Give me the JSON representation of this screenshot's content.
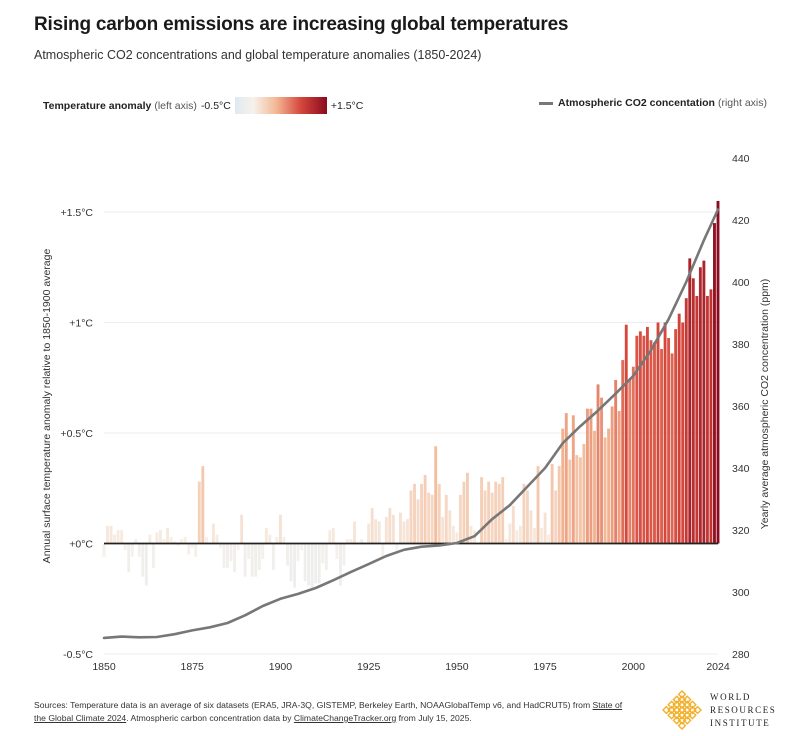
{
  "header": {
    "title": "Rising carbon emissions are increasing global temperatures",
    "subtitle": "Atmospheric CO2 concentrations and global temperature anomalies (1850-2024)"
  },
  "legend": {
    "temp_label": "Temperature anomaly",
    "temp_axis_note": "(left axis)",
    "temp_min": "-0.5°C",
    "temp_max": "+1.5°C",
    "co2_label": "Atmospheric CO2 concentation",
    "co2_axis_note": "(right axis)",
    "co2_color": "#777777"
  },
  "footer": {
    "sources_pre": "Sources: Temperature data is an average of six datasets (ERA5, JRA-3Q, GISTEMP, Berkeley Earth, NOAAGlobalTemp v6, and HadCRUT5) from ",
    "sources_link1": "State of the Global Climate 2024",
    "sources_mid": ". Atmospheric carbon concentration data by ",
    "sources_link2": "ClimateChangeTracker.org",
    "sources_post": " from July 15, 2025.",
    "org_line1": "WORLD",
    "org_line2": "RESOURCES",
    "org_line3": "INSTITUTE",
    "logo_color": "#f2b02c"
  },
  "chart_data": {
    "type": "bar",
    "ylabel": "Annual surface temperature anomaly relative to 1850-1900 average",
    "y2label": "Yearly average atmospheric CO2 concentration (ppm)",
    "ylim": [
      -0.5,
      1.5
    ],
    "y2lim": [
      280,
      440
    ],
    "xlim": [
      1850,
      2024
    ],
    "x_ticks": [
      "1850",
      "1875",
      "1900",
      "1925",
      "1950",
      "1975",
      "2000",
      "2024"
    ],
    "y_ticks": [
      "-0.5°C",
      "+0°C",
      "+0.5°C",
      "+1°C",
      "+1.5°C"
    ],
    "y2_ticks": [
      "280",
      "300",
      "320",
      "340",
      "360",
      "380",
      "400",
      "420",
      "440"
    ],
    "grid": true,
    "color_scale": [
      "#dfe9f2",
      "#f7f1ea",
      "#f3b794",
      "#d5463b",
      "#8a0a1f"
    ],
    "series": [
      {
        "name": "Temperature anomaly",
        "type": "bar",
        "years": [
          1850,
          1851,
          1852,
          1853,
          1854,
          1855,
          1856,
          1857,
          1858,
          1859,
          1860,
          1861,
          1862,
          1863,
          1864,
          1865,
          1866,
          1867,
          1868,
          1869,
          1870,
          1871,
          1872,
          1873,
          1874,
          1875,
          1876,
          1877,
          1878,
          1879,
          1880,
          1881,
          1882,
          1883,
          1884,
          1885,
          1886,
          1887,
          1888,
          1889,
          1890,
          1891,
          1892,
          1893,
          1894,
          1895,
          1896,
          1897,
          1898,
          1899,
          1900,
          1901,
          1902,
          1903,
          1904,
          1905,
          1906,
          1907,
          1908,
          1909,
          1910,
          1911,
          1912,
          1913,
          1914,
          1915,
          1916,
          1917,
          1918,
          1919,
          1920,
          1921,
          1922,
          1923,
          1924,
          1925,
          1926,
          1927,
          1928,
          1929,
          1930,
          1931,
          1932,
          1933,
          1934,
          1935,
          1936,
          1937,
          1938,
          1939,
          1940,
          1941,
          1942,
          1943,
          1944,
          1945,
          1946,
          1947,
          1948,
          1949,
          1950,
          1951,
          1952,
          1953,
          1954,
          1955,
          1956,
          1957,
          1958,
          1959,
          1960,
          1961,
          1962,
          1963,
          1964,
          1965,
          1966,
          1967,
          1968,
          1969,
          1970,
          1971,
          1972,
          1973,
          1974,
          1975,
          1976,
          1977,
          1978,
          1979,
          1980,
          1981,
          1982,
          1983,
          1984,
          1985,
          1986,
          1987,
          1988,
          1989,
          1990,
          1991,
          1992,
          1993,
          1994,
          1995,
          1996,
          1997,
          1998,
          1999,
          2000,
          2001,
          2002,
          2003,
          2004,
          2005,
          2006,
          2007,
          2008,
          2009,
          2010,
          2011,
          2012,
          2013,
          2014,
          2015,
          2016,
          2017,
          2018,
          2019,
          2020,
          2021,
          2022,
          2023,
          2024
        ],
        "values": [
          -0.06,
          0.08,
          0.08,
          0.04,
          0.06,
          0.06,
          -0.03,
          -0.13,
          -0.06,
          0.02,
          -0.06,
          -0.15,
          -0.19,
          0.04,
          -0.11,
          0.05,
          0.06,
          0.02,
          0.07,
          0.03,
          0.01,
          -0.01,
          0.02,
          0.03,
          -0.05,
          -0.02,
          -0.06,
          0.28,
          0.35,
          0.03,
          0.0,
          0.09,
          0.04,
          -0.02,
          -0.11,
          -0.11,
          -0.08,
          -0.13,
          -0.03,
          0.13,
          -0.15,
          -0.07,
          -0.15,
          -0.15,
          -0.12,
          -0.07,
          0.07,
          0.04,
          -0.12,
          0.03,
          0.13,
          0.03,
          -0.1,
          -0.17,
          -0.2,
          -0.08,
          -0.03,
          -0.17,
          -0.19,
          -0.2,
          -0.18,
          -0.18,
          -0.09,
          -0.12,
          0.06,
          0.07,
          -0.07,
          -0.19,
          -0.1,
          0.02,
          0.02,
          0.1,
          0.0,
          0.02,
          0.0,
          0.09,
          0.16,
          0.11,
          0.1,
          -0.06,
          0.12,
          0.16,
          0.13,
          -0.03,
          0.14,
          0.1,
          0.11,
          0.24,
          0.27,
          0.2,
          0.27,
          0.31,
          0.23,
          0.22,
          0.44,
          0.27,
          0.12,
          0.22,
          0.15,
          0.08,
          0.05,
          0.22,
          0.28,
          0.32,
          0.08,
          0.06,
          0.0,
          0.3,
          0.24,
          0.28,
          0.23,
          0.28,
          0.27,
          0.3,
          0.02,
          0.09,
          0.17,
          0.06,
          0.08,
          0.27,
          0.24,
          0.15,
          0.07,
          0.35,
          0.07,
          0.14,
          0.04,
          0.36,
          0.24,
          0.35,
          0.52,
          0.59,
          0.38,
          0.58,
          0.4,
          0.39,
          0.45,
          0.61,
          0.61,
          0.51,
          0.72,
          0.66,
          0.48,
          0.52,
          0.62,
          0.74,
          0.6,
          0.83,
          0.99,
          0.74,
          0.8,
          0.94,
          0.96,
          0.94,
          0.98,
          0.92,
          0.91,
          1.0,
          0.88,
          1.0,
          0.93,
          0.86,
          0.97,
          1.04,
          1.0,
          1.11,
          1.29,
          1.2,
          1.12,
          1.25,
          1.28,
          1.12,
          1.15,
          1.45,
          1.55
        ]
      },
      {
        "name": "Atmospheric CO2 concentation",
        "type": "line",
        "years": [
          1850,
          1855,
          1860,
          1865,
          1870,
          1875,
          1880,
          1885,
          1890,
          1895,
          1900,
          1905,
          1910,
          1915,
          1920,
          1925,
          1930,
          1935,
          1940,
          1945,
          1950,
          1955,
          1960,
          1965,
          1970,
          1975,
          1980,
          1985,
          1990,
          1995,
          2000,
          2005,
          2010,
          2015,
          2020,
          2024
        ],
        "values": [
          285.2,
          285.6,
          285.4,
          285.5,
          286.4,
          287.6,
          288.6,
          290.0,
          292.5,
          295.5,
          297.8,
          299.4,
          301.3,
          303.8,
          306.5,
          309.0,
          311.6,
          313.6,
          314.6,
          315.0,
          315.8,
          318.0,
          323.5,
          328.0,
          334.0,
          340.0,
          348.0,
          353.5,
          358.5,
          364.0,
          369.7,
          378.0,
          388.0,
          400.0,
          413.5,
          423.4
        ]
      }
    ]
  }
}
